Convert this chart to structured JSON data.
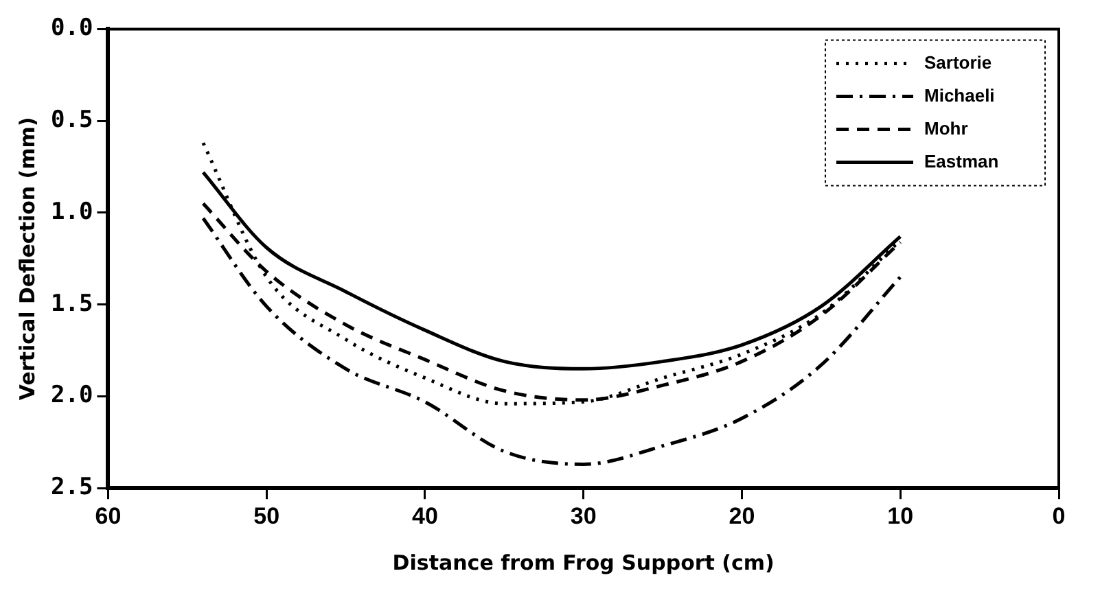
{
  "chart_data": {
    "type": "line",
    "xlabel": "Distance from Frog Support (cm)",
    "ylabel": "Vertical Deflection (mm)",
    "x": [
      54,
      50,
      45,
      40,
      35,
      30,
      25,
      20,
      15,
      10
    ],
    "series": [
      {
        "name": "Sartorie",
        "color": "#000000",
        "line_style": "dotted",
        "values": [
          0.62,
          1.35,
          1.69,
          1.9,
          2.04,
          2.03,
          1.9,
          1.77,
          1.55,
          1.15
        ]
      },
      {
        "name": "Michaeli",
        "color": "#000000",
        "line_style": "dashdot",
        "values": [
          1.03,
          1.51,
          1.85,
          2.03,
          2.3,
          2.37,
          2.27,
          2.12,
          1.83,
          1.35
        ]
      },
      {
        "name": "Mohr",
        "color": "#000000",
        "line_style": "dashed",
        "values": [
          0.95,
          1.32,
          1.61,
          1.8,
          1.97,
          2.02,
          1.94,
          1.81,
          1.56,
          1.16
        ]
      },
      {
        "name": "Eastman",
        "color": "#000000",
        "line_style": "solid",
        "values": [
          0.78,
          1.19,
          1.43,
          1.64,
          1.81,
          1.85,
          1.81,
          1.72,
          1.51,
          1.13
        ]
      }
    ],
    "xlim": [
      60,
      0
    ],
    "xticks": [
      60,
      50,
      40,
      30,
      20,
      10,
      0
    ],
    "ylim": [
      2.5,
      0
    ],
    "yticks": [
      {
        "value": 0,
        "label": "0.0"
      },
      {
        "value": 0.5,
        "label": "0.5"
      },
      {
        "value": 1,
        "label": "1.0"
      },
      {
        "value": 1.5,
        "label": "1.5"
      },
      {
        "value": 2,
        "label": "2.0"
      },
      {
        "value": 2.5,
        "label": "2.5"
      }
    ],
    "grid": false,
    "legend": "top right",
    "marker": "none"
  }
}
